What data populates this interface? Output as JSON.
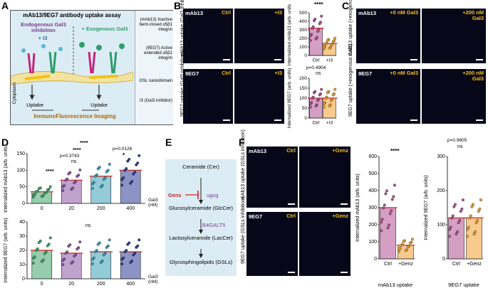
{
  "panels": {
    "A": "A",
    "B": "B",
    "C": "C",
    "D": "D",
    "E": "E",
    "F": "F"
  },
  "panelA": {
    "title": "mAb13/9EG7 antibody uptake assay",
    "endogenous": "Endogenous Gal3 inhibition",
    "plus_i3": "+ I3",
    "exogenous": "+ Exogenous Gal3",
    "cytoplasm": "Cytoplasm",
    "uptake_left": "Uptake",
    "uptake_right": "Uptake",
    "imaging": "ImmunoFluorescence Imaging",
    "legend": [
      {
        "label": "(mAb13) Inactive bent-closed α5β1 integrin",
        "color": "#c2277a"
      },
      {
        "label": "(9EG7) Active extended α5β1 integrin",
        "color": "#2e9e6b"
      },
      {
        "label": "GSL nanodomain",
        "color": "#f1c40f"
      },
      {
        "label": "I3 (Gal3 inhibitor)",
        "color": "#5bb5dd"
      }
    ]
  },
  "panelB": {
    "mic_top_left": "mAb13",
    "mic_top_ctrl": "Ctrl",
    "mic_top_i3": "+I3",
    "mic_bot_left": "9EG7",
    "mic_bot_ctrl": "Ctrl",
    "mic_bot_i3": "+I3",
    "row_top_label": "mAb13 uptake (Gal3 inhibition)",
    "row_bot_label": "9EG7 uptake (Gal3 inhibition)",
    "sig_top": "****",
    "sig_bot_p": "p=0.4904",
    "sig_bot": "ns"
  },
  "panelC": {
    "mic_top_left": "mAb13",
    "mic_top_0": "+0 nM Gal3",
    "mic_top_200": "+200 nM Gal3",
    "mic_bot_left": "9EG7",
    "mic_bot_0": "+0 nM Gal3",
    "mic_bot_200": "+200 nM Gal3",
    "row_top_label": "mAb13 uptake (+exogenous Gal3)",
    "row_bot_label": "9EG7 uptake (+exogenous Gal3)"
  },
  "panelD": {
    "sig": [
      "****",
      "****",
      "****",
      "p=0.3743",
      "ns",
      "p=0.0126",
      "*"
    ],
    "sig_bot": "ns",
    "xunit": "Gal3 (nM)"
  },
  "panelE": {
    "ceramide": "Ceramide (Cer)",
    "genz": "Genz",
    "ugcg": "ugcg",
    "glucosyl": "Glucosylceramide (GlcCer)",
    "b4galt5": "B4GALT5",
    "lactosyl": "Lactosylceramide (LacCer)",
    "gsl": "Glycosphingolipids (GSLs)"
  },
  "panelF": {
    "mic_top_left": "mAb13",
    "mic_top_ctrl": "Ctrl",
    "mic_top_genz": "+Genz",
    "mic_bot_left": "9EG7",
    "mic_bot_ctrl": "Ctrl",
    "mic_bot_genz": "+Genz",
    "row_top_label": "mAb13 uptake (GSLs inhibition)",
    "row_bot_label": "9EG7 uptake (GSLs inhibition)",
    "sig_left": "****",
    "sig_right_p": "p=0.9605",
    "sig_right": "ns",
    "caption_left": "mAb13 uptake",
    "caption_right": "9EG7 uptake"
  },
  "chart_data": [
    {
      "id": "B-top",
      "type": "bar",
      "categories": [
        "Ctrl",
        "+I3"
      ],
      "values": [
        320,
        140
      ],
      "ylabel": "Internalized mAb13 (arb. units)",
      "ylim": [
        0,
        500
      ],
      "yticks": [
        0,
        100,
        200,
        300,
        400,
        500
      ],
      "colors": [
        "#b0508f",
        "#f0a030"
      ]
    },
    {
      "id": "B-bottom",
      "type": "bar",
      "categories": [
        "Ctrl",
        "+I3"
      ],
      "values": [
        100,
        100
      ],
      "ylabel": "Internalized 9EG7 (arb. units)",
      "ylim": [
        0,
        200
      ],
      "yticks": [
        0,
        50,
        100,
        150,
        200
      ],
      "colors": [
        "#b0508f",
        "#f0a030"
      ]
    },
    {
      "id": "D-top",
      "type": "bar",
      "categories": [
        "0",
        "20",
        "200",
        "400"
      ],
      "values": [
        35,
        70,
        82,
        100
      ],
      "ylabel": "Internalized mAb13 (arb. units)",
      "ylim": [
        0,
        150
      ],
      "yticks": [
        0,
        50,
        100,
        150
      ],
      "colors": [
        "#3fa46a",
        "#8d55a8",
        "#3aa0b8",
        "#2c3d95"
      ]
    },
    {
      "id": "D-bottom",
      "type": "bar",
      "categories": [
        "0",
        "20",
        "200",
        "400"
      ],
      "values": [
        20,
        18,
        19,
        19
      ],
      "ylabel": "Internalized 9EG7 (arb. units)",
      "ylim": [
        0,
        40
      ],
      "yticks": [
        0,
        10,
        20,
        30,
        40
      ],
      "colors": [
        "#3fa46a",
        "#8d55a8",
        "#3aa0b8",
        "#2c3d95"
      ]
    },
    {
      "id": "F-left",
      "type": "bar",
      "categories": [
        "Ctrl",
        "+Genz"
      ],
      "values": [
        300,
        80
      ],
      "ylabel": "Internalized mAb13 (arb. units)",
      "ylim": [
        0,
        600
      ],
      "yticks": [
        0,
        100,
        200,
        300,
        400,
        500,
        600
      ],
      "colors": [
        "#b0508f",
        "#f0a030"
      ]
    },
    {
      "id": "F-right",
      "type": "bar",
      "categories": [
        "Ctrl",
        "+Genz"
      ],
      "values": [
        120,
        120
      ],
      "ylabel": "Internalized 9EG7 (arb. units)",
      "ylim": [
        0,
        300
      ],
      "yticks": [
        0,
        100,
        200,
        300
      ],
      "colors": [
        "#b0508f",
        "#f0a030"
      ]
    }
  ]
}
